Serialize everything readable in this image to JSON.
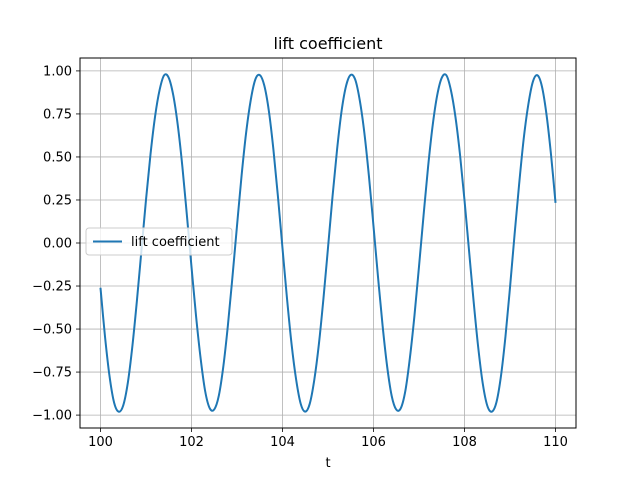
{
  "chart_data": {
    "type": "line",
    "title": "lift coefficient",
    "xlabel": "t",
    "ylabel": "",
    "xlim": [
      99.55,
      110.45
    ],
    "ylim": [
      -1.075,
      1.075
    ],
    "xticks": [
      100,
      102,
      104,
      106,
      108,
      110
    ],
    "xtick_labels": [
      "100",
      "102",
      "104",
      "106",
      "108",
      "110"
    ],
    "yticks": [
      -1.0,
      -0.75,
      -0.5,
      -0.25,
      0.0,
      0.25,
      0.5,
      0.75,
      1.0
    ],
    "ytick_labels": [
      "−1.00",
      "−0.75",
      "−0.50",
      "−0.25",
      "0.00",
      "0.25",
      "0.50",
      "0.75",
      "1.00"
    ],
    "grid": true,
    "legend_position": "center-left",
    "series": [
      {
        "name": "lift coefficient",
        "color": "#1f77b4",
        "x": [
          100.0,
          100.1,
          100.2,
          100.3,
          100.4,
          100.5,
          100.6,
          100.7,
          100.8,
          100.9,
          101.0,
          101.1,
          101.2,
          101.3,
          101.4,
          101.5,
          101.6,
          101.7,
          101.8,
          101.9,
          102.0,
          102.1,
          102.2,
          102.3,
          102.4,
          102.5,
          102.6,
          102.7,
          102.8,
          102.9,
          103.0,
          103.1,
          103.2,
          103.3,
          103.4,
          103.5,
          103.6,
          103.7,
          103.8,
          103.9,
          104.0,
          104.1,
          104.2,
          104.3,
          104.4,
          104.5,
          104.6,
          104.7,
          104.8,
          104.9,
          105.0,
          105.1,
          105.2,
          105.3,
          105.4,
          105.5,
          105.6,
          105.7,
          105.8,
          105.9,
          106.0,
          106.1,
          106.2,
          106.3,
          106.4,
          106.5,
          106.6,
          106.7,
          106.8,
          106.9,
          107.0,
          107.1,
          107.2,
          107.3,
          107.4,
          107.5,
          107.6,
          107.7,
          107.8,
          107.9,
          108.0,
          108.1,
          108.2,
          108.3,
          108.4,
          108.5,
          108.6,
          108.7,
          108.8,
          108.9,
          109.0,
          109.1,
          109.2,
          109.3,
          109.4,
          109.5,
          109.6,
          109.7,
          109.8,
          109.9,
          110.0
        ],
        "y": [
          -0.26,
          -0.545,
          -0.776,
          -0.928,
          -0.98,
          -0.944,
          -0.814,
          -0.602,
          -0.337,
          -0.044,
          0.25,
          0.517,
          0.736,
          0.89,
          0.975,
          0.96,
          0.858,
          0.682,
          0.443,
          0.158,
          -0.138,
          -0.424,
          -0.669,
          -0.86,
          -0.96,
          -0.967,
          -0.888,
          -0.717,
          -0.479,
          -0.198,
          0.099,
          0.389,
          0.639,
          0.827,
          0.948,
          0.976,
          0.915,
          0.768,
          0.544,
          0.27,
          -0.03,
          -0.325,
          -0.589,
          -0.794,
          -0.934,
          -0.98,
          -0.933,
          -0.793,
          -0.587,
          -0.323,
          -0.028,
          0.272,
          0.545,
          0.77,
          0.916,
          0.977,
          0.948,
          0.826,
          0.638,
          0.387,
          0.097,
          -0.2,
          -0.481,
          -0.718,
          -0.889,
          -0.968,
          -0.96,
          -0.859,
          -0.667,
          -0.422,
          -0.136,
          0.16,
          0.444,
          0.683,
          0.859,
          0.96,
          0.975,
          0.889,
          0.734,
          0.516,
          0.248,
          -0.046,
          -0.339,
          -0.604,
          -0.815,
          -0.945,
          -0.98,
          -0.927,
          -0.775,
          -0.543,
          -0.258,
          0.049,
          0.341,
          0.604,
          0.801,
          0.935,
          0.975,
          0.911,
          0.75,
          0.516,
          0.233
        ]
      }
    ]
  }
}
